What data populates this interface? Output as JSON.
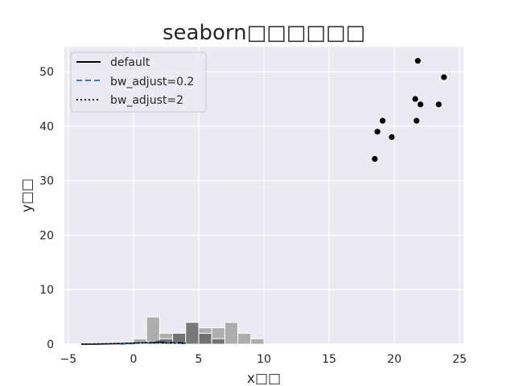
{
  "chart_data": {
    "type": "scatter",
    "title": "seaborn□□□□□□",
    "xlabel": "x□□",
    "ylabel": "y□□",
    "xlim": [
      -5.3,
      25.3
    ],
    "ylim": [
      0,
      54.6
    ],
    "xticks": [
      -5,
      0,
      5,
      10,
      15,
      20,
      25
    ],
    "yticks": [
      0,
      10,
      20,
      30,
      40,
      50
    ],
    "grid": true,
    "background": "#eaeaf2",
    "legend": {
      "placement": "top-left",
      "entries": [
        {
          "label": "default",
          "style": "solid",
          "color": "#000000"
        },
        {
          "label": "bw_adjust=0.2",
          "style": "dashed",
          "color": "#4c72b0"
        },
        {
          "label": "bw_adjust=2",
          "style": "dotted",
          "color": "#000000"
        }
      ]
    },
    "scatter": {
      "color": "#000000",
      "points": [
        {
          "x": 18.5,
          "y": 34
        },
        {
          "x": 18.7,
          "y": 39
        },
        {
          "x": 19.1,
          "y": 41
        },
        {
          "x": 19.8,
          "y": 38
        },
        {
          "x": 21.6,
          "y": 45
        },
        {
          "x": 21.7,
          "y": 41
        },
        {
          "x": 21.8,
          "y": 52
        },
        {
          "x": 22.0,
          "y": 44
        },
        {
          "x": 23.4,
          "y": 44
        },
        {
          "x": 23.8,
          "y": 49
        }
      ]
    },
    "histograms": [
      {
        "color": "#a6a6a6",
        "bins": [
          {
            "x0": 0,
            "x1": 1,
            "y": 1
          },
          {
            "x0": 1,
            "x1": 2,
            "y": 5
          },
          {
            "x0": 2,
            "x1": 3,
            "y": 2
          },
          {
            "x0": 3,
            "x1": 4,
            "y": 2
          },
          {
            "x0": 5,
            "x1": 6,
            "y": 3
          },
          {
            "x0": 6,
            "x1": 7,
            "y": 3
          },
          {
            "x0": 7,
            "x1": 8,
            "y": 4
          },
          {
            "x0": 8,
            "x1": 9,
            "y": 2
          },
          {
            "x0": 9,
            "x1": 10,
            "y": 1
          }
        ]
      },
      {
        "color": "#6b6b6b",
        "bins": [
          {
            "x0": 1,
            "x1": 2,
            "y": 0.5
          },
          {
            "x0": 2,
            "x1": 3,
            "y": 1
          },
          {
            "x0": 3,
            "x1": 4,
            "y": 2
          },
          {
            "x0": 4,
            "x1": 5,
            "y": 4
          },
          {
            "x0": 5,
            "x1": 6,
            "y": 2
          },
          {
            "x0": 6,
            "x1": 7,
            "y": 1
          }
        ]
      }
    ],
    "kde": [
      {
        "style": "solid",
        "color": "#000000",
        "x": [
          -4,
          -3,
          -2,
          -1,
          0,
          1,
          2,
          3,
          4
        ],
        "y": [
          0,
          0,
          0.05,
          0.1,
          0.2,
          0.3,
          0.4,
          0.3,
          0.2
        ]
      },
      {
        "style": "dashed",
        "color": "#4c72b0",
        "x": [
          -1,
          0,
          1,
          2,
          3,
          4
        ],
        "y": [
          0,
          0.1,
          0.3,
          0.6,
          0.3,
          0.1
        ]
      },
      {
        "style": "dotted",
        "color": "#000000",
        "x": [
          -4,
          -3,
          -2,
          -1,
          0,
          1,
          2,
          3,
          4
        ],
        "y": [
          0,
          0.05,
          0.1,
          0.15,
          0.2,
          0.25,
          0.25,
          0.2,
          0.15
        ]
      }
    ]
  }
}
